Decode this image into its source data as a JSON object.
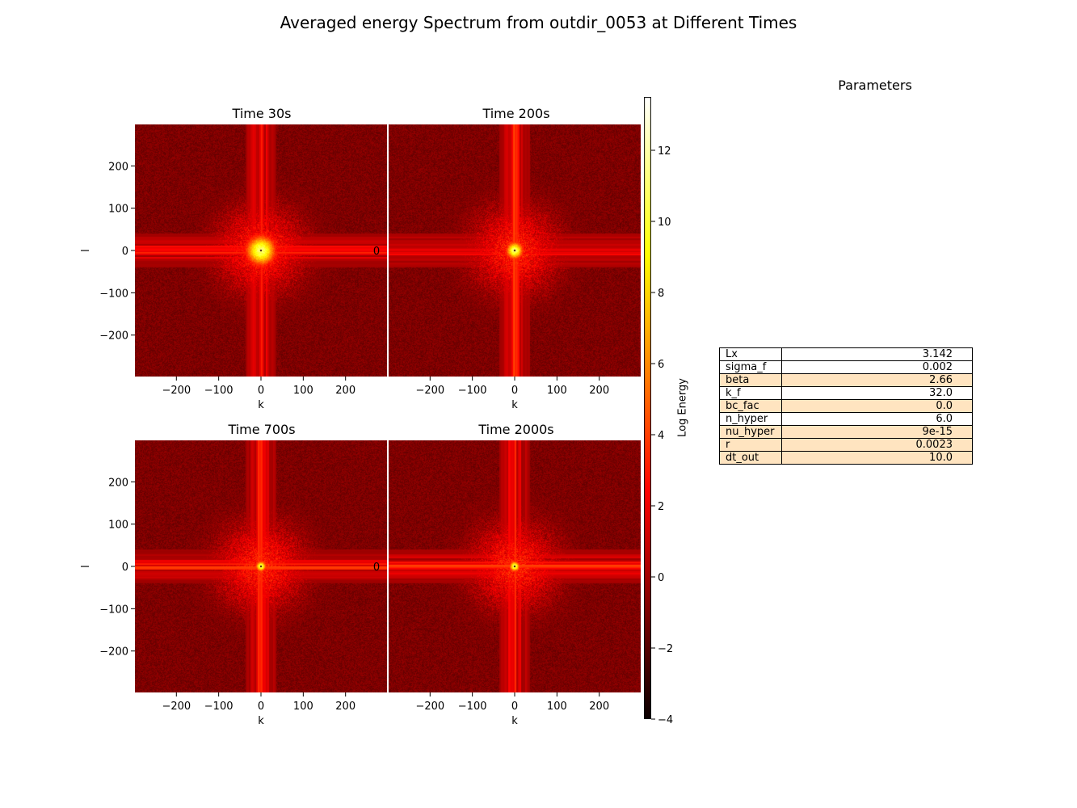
{
  "title": "Averaged energy Spectrum from outdir_0053 at Different Times",
  "chart_data": [
    {
      "type": "heatmap",
      "title": "Time 30s",
      "xlabel": "k",
      "ylabel": "l",
      "xlim": [
        -298,
        298
      ],
      "ylim": [
        -298,
        298
      ],
      "xticks": [
        -200,
        -100,
        0,
        100,
        200
      ],
      "yticks": [
        200,
        100,
        0,
        -100,
        -200
      ],
      "xticklabels": [
        "−200",
        "−100",
        "0",
        "100",
        "200"
      ],
      "yticklabels": [
        "200",
        "100",
        "0",
        "−100",
        "−200"
      ],
      "stray_label": "0",
      "colormap": "hot",
      "peak_log_energy": 12,
      "core_radius_k": 35
    },
    {
      "type": "heatmap",
      "title": "Time 200s",
      "xlabel": "k",
      "ylabel": "",
      "xlim": [
        -298,
        298
      ],
      "ylim": [
        -298,
        298
      ],
      "xticks": [
        -200,
        -100,
        0,
        100,
        200
      ],
      "xticklabels": [
        "−200",
        "−100",
        "0",
        "100",
        "200"
      ],
      "colormap": "hot",
      "peak_log_energy": 12,
      "core_radius_k": 20
    },
    {
      "type": "heatmap",
      "title": "Time 700s",
      "xlabel": "k",
      "ylabel": "l",
      "xlim": [
        -298,
        298
      ],
      "ylim": [
        -298,
        298
      ],
      "xticks": [
        -200,
        -100,
        0,
        100,
        200
      ],
      "yticks": [
        200,
        100,
        0,
        -100,
        -200
      ],
      "xticklabels": [
        "−200",
        "−100",
        "0",
        "100",
        "200"
      ],
      "yticklabels": [
        "200",
        "100",
        "0",
        "−100",
        "−200"
      ],
      "stray_label": "0",
      "colormap": "hot",
      "peak_log_energy": 12,
      "core_radius_k": 12
    },
    {
      "type": "heatmap",
      "title": "Time 2000s",
      "xlabel": "k",
      "ylabel": "",
      "xlim": [
        -298,
        298
      ],
      "ylim": [
        -298,
        298
      ],
      "xticks": [
        -200,
        -100,
        0,
        100,
        200
      ],
      "xticklabels": [
        "−200",
        "−100",
        "0",
        "100",
        "200"
      ],
      "colormap": "hot",
      "peak_log_energy": 12,
      "core_radius_k": 12
    }
  ],
  "colorbar": {
    "label": "Log Energy",
    "min": -4,
    "max": 13.5,
    "ticks": [
      12,
      10,
      8,
      6,
      4,
      2,
      0,
      -2,
      -4
    ],
    "ticklabels": [
      "12",
      "10",
      "8",
      "6",
      "4",
      "2",
      "0",
      "−2",
      "−4"
    ],
    "colormap": "hot"
  },
  "parameters": {
    "title": "Parameters",
    "rows": [
      {
        "name": "Lx",
        "value": "3.142",
        "highlight": false
      },
      {
        "name": "sigma_f",
        "value": "0.002",
        "highlight": false
      },
      {
        "name": "beta",
        "value": "2.66",
        "highlight": true
      },
      {
        "name": "k_f",
        "value": "32.0",
        "highlight": false
      },
      {
        "name": "bc_fac",
        "value": "0.0",
        "highlight": true
      },
      {
        "name": "n_hyper",
        "value": "6.0",
        "highlight": false
      },
      {
        "name": "nu_hyper",
        "value": "9e-15",
        "highlight": true
      },
      {
        "name": "r",
        "value": "0.0023",
        "highlight": true
      },
      {
        "name": "dt_out",
        "value": "10.0",
        "highlight": true
      }
    ],
    "highlight_color": "#ffe4c0"
  }
}
